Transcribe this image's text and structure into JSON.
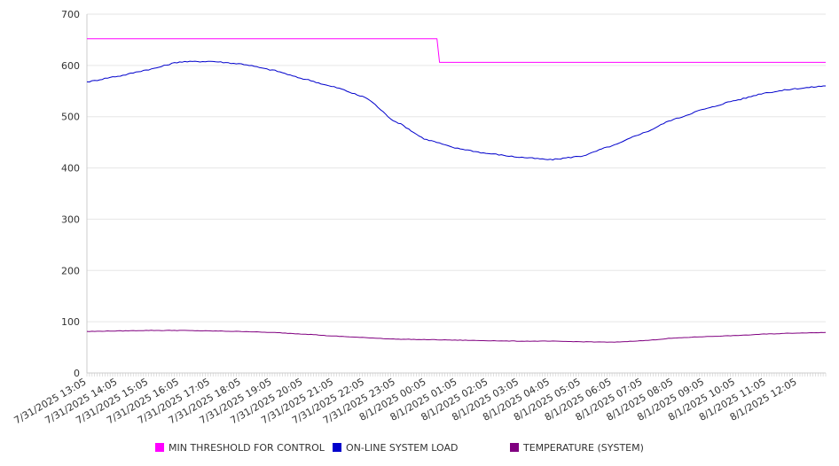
{
  "chart_data": {
    "type": "line",
    "title": "",
    "xlabel": "",
    "ylabel": "",
    "ylim": [
      0,
      700
    ],
    "yticks": [
      0,
      100,
      200,
      300,
      400,
      500,
      600,
      700
    ],
    "grid": true,
    "legend_position": "bottom",
    "x": [
      "7/31/2025 13:05",
      "7/31/2025 14:05",
      "7/31/2025 15:05",
      "7/31/2025 16:05",
      "7/31/2025 17:05",
      "7/31/2025 18:05",
      "7/31/2025 19:05",
      "7/31/2025 20:05",
      "7/31/2025 21:05",
      "7/31/2025 22:05",
      "7/31/2025 23:05",
      "8/1/2025 00:05",
      "8/1/2025 01:05",
      "8/1/2025 02:05",
      "8/1/2025 03:05",
      "8/1/2025 04:05",
      "8/1/2025 05:05",
      "8/1/2025 06:05",
      "8/1/2025 07:05",
      "8/1/2025 08:05",
      "8/1/2025 09:05",
      "8/1/2025 10:05",
      "8/1/2025 11:05",
      "8/1/2025 12:05"
    ],
    "series": [
      {
        "name": "MIN THRESHOLD FOR CONTROL",
        "color": "#ff00ff",
        "points": [
          [
            "7/31/2025 13:05",
            652
          ],
          [
            "8/1/2025 00:25",
            652
          ],
          [
            "8/1/2025 00:30",
            606
          ],
          [
            "8/1/2025 13:00",
            606
          ]
        ]
      },
      {
        "name": "ON-LINE SYSTEM LOAD",
        "color": "#0000cc",
        "points": [
          [
            "7/31/2025 13:05",
            568
          ],
          [
            "7/31/2025 14:05",
            579
          ],
          [
            "7/31/2025 15:05",
            592
          ],
          [
            "7/31/2025 16:05",
            607
          ],
          [
            "7/31/2025 17:05",
            608
          ],
          [
            "7/31/2025 18:05",
            603
          ],
          [
            "7/31/2025 19:05",
            591
          ],
          [
            "7/31/2025 20:05",
            574
          ],
          [
            "7/31/2025 21:05",
            558
          ],
          [
            "7/31/2025 22:05",
            538
          ],
          [
            "7/31/2025 23:05",
            490
          ],
          [
            "8/1/2025 00:05",
            455
          ],
          [
            "8/1/2025 01:05",
            438
          ],
          [
            "8/1/2025 02:05",
            428
          ],
          [
            "8/1/2025 03:05",
            421
          ],
          [
            "8/1/2025 04:05",
            416
          ],
          [
            "8/1/2025 05:05",
            423
          ],
          [
            "8/1/2025 06:05",
            443
          ],
          [
            "8/1/2025 07:05",
            468
          ],
          [
            "8/1/2025 08:05",
            495
          ],
          [
            "8/1/2025 09:05",
            515
          ],
          [
            "8/1/2025 10:05",
            532
          ],
          [
            "8/1/2025 11:05",
            547
          ],
          [
            "8/1/2025 12:05",
            555
          ],
          [
            "8/1/2025 13:00",
            560
          ]
        ]
      },
      {
        "name": "TEMPERATURE (SYSTEM)",
        "color": "#800080",
        "points": [
          [
            "7/31/2025 13:05",
            81
          ],
          [
            "7/31/2025 14:05",
            82
          ],
          [
            "7/31/2025 15:05",
            83
          ],
          [
            "7/31/2025 16:05",
            83
          ],
          [
            "7/31/2025 17:05",
            82
          ],
          [
            "7/31/2025 18:05",
            81
          ],
          [
            "7/31/2025 19:05",
            79
          ],
          [
            "7/31/2025 20:05",
            76
          ],
          [
            "7/31/2025 21:05",
            72
          ],
          [
            "7/31/2025 22:05",
            69
          ],
          [
            "7/31/2025 23:05",
            66
          ],
          [
            "8/1/2025 00:05",
            65
          ],
          [
            "8/1/2025 01:05",
            64
          ],
          [
            "8/1/2025 02:05",
            63
          ],
          [
            "8/1/2025 03:05",
            62
          ],
          [
            "8/1/2025 04:05",
            62
          ],
          [
            "8/1/2025 05:05",
            61
          ],
          [
            "8/1/2025 06:05",
            60
          ],
          [
            "8/1/2025 07:05",
            63
          ],
          [
            "8/1/2025 08:05",
            68
          ],
          [
            "8/1/2025 09:05",
            71
          ],
          [
            "8/1/2025 10:05",
            73
          ],
          [
            "8/1/2025 11:05",
            76
          ],
          [
            "8/1/2025 12:05",
            78
          ],
          [
            "8/1/2025 13:00",
            79
          ]
        ]
      }
    ]
  }
}
